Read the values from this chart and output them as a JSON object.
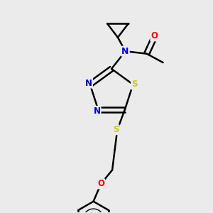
{
  "background_color": "#ebebeb",
  "bond_color": "#000000",
  "atom_colors": {
    "N": "#0000ee",
    "S": "#cccc00",
    "O": "#ff0000",
    "C": "#000000"
  },
  "bond_width": 1.8,
  "figsize": [
    3.0,
    3.0
  ],
  "dpi": 100,
  "xlim": [
    0,
    10
  ],
  "ylim": [
    0,
    10
  ]
}
